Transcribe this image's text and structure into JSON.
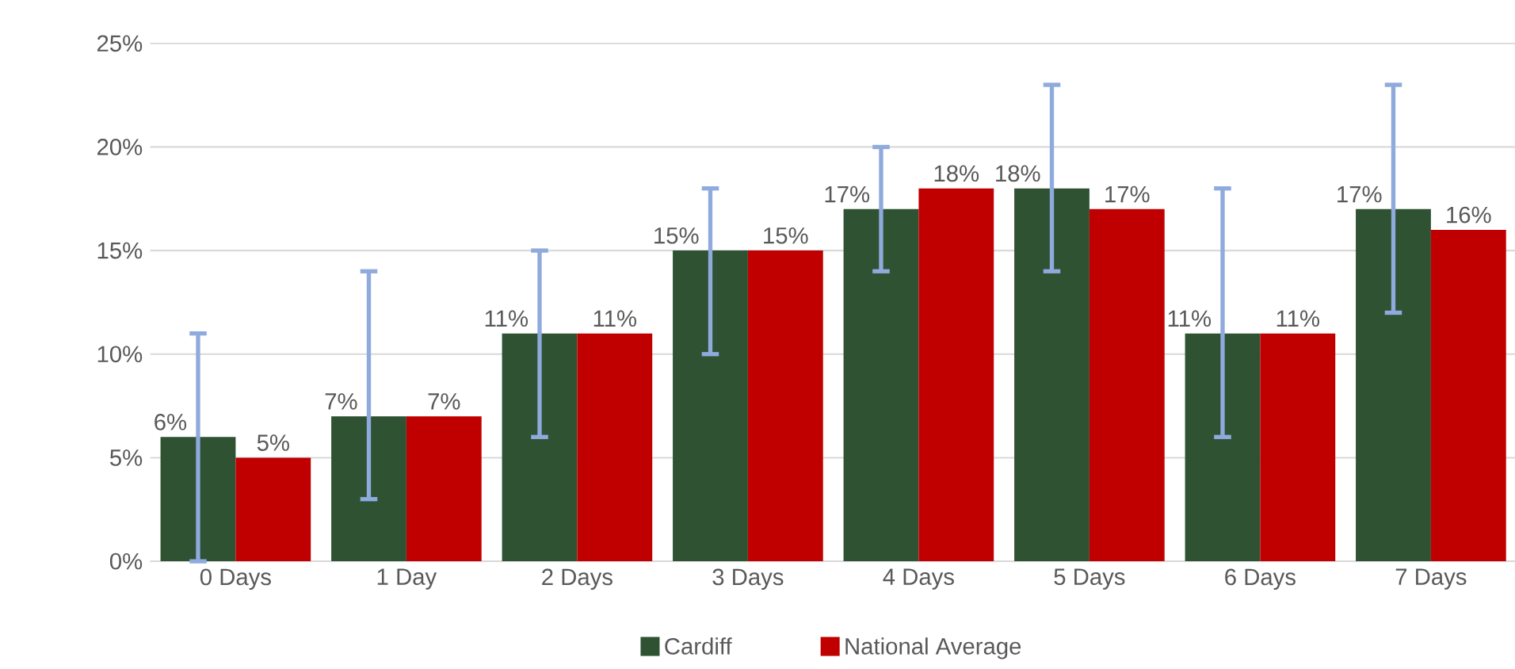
{
  "chart_data": {
    "type": "bar",
    "categories": [
      "0 Days",
      "1 Day",
      "2 Days",
      "3 Days",
      "4 Days",
      "5 Days",
      "6 Days",
      "7 Days"
    ],
    "series": [
      {
        "name": "Cardiff",
        "color": "#2f5233",
        "values": [
          6,
          7,
          11,
          15,
          17,
          18,
          11,
          17
        ],
        "value_labels": [
          "6%",
          "7%",
          "11%",
          "15%",
          "17%",
          "18%",
          "11%",
          "17%"
        ],
        "errors": [
          [
            0,
            11
          ],
          [
            3,
            14
          ],
          [
            6,
            15
          ],
          [
            10,
            18
          ],
          [
            14,
            20
          ],
          [
            14,
            23
          ],
          [
            6,
            18
          ],
          [
            12,
            23
          ]
        ]
      },
      {
        "name": "National Average",
        "color": "#c00000",
        "values": [
          5,
          7,
          11,
          15,
          18,
          17,
          11,
          16
        ],
        "value_labels": [
          "5%",
          "7%",
          "11%",
          "15%",
          "18%",
          "17%",
          "11%",
          "16%"
        ]
      }
    ],
    "ylim": [
      0,
      25
    ],
    "yticks": [
      {
        "value": 0,
        "label": "0%"
      },
      {
        "value": 5,
        "label": "5%"
      },
      {
        "value": 10,
        "label": "10%"
      },
      {
        "value": 15,
        "label": "15%"
      },
      {
        "value": 20,
        "label": "20%"
      },
      {
        "value": 25,
        "label": "25%"
      }
    ],
    "grid": "y",
    "legend": "bottom"
  }
}
